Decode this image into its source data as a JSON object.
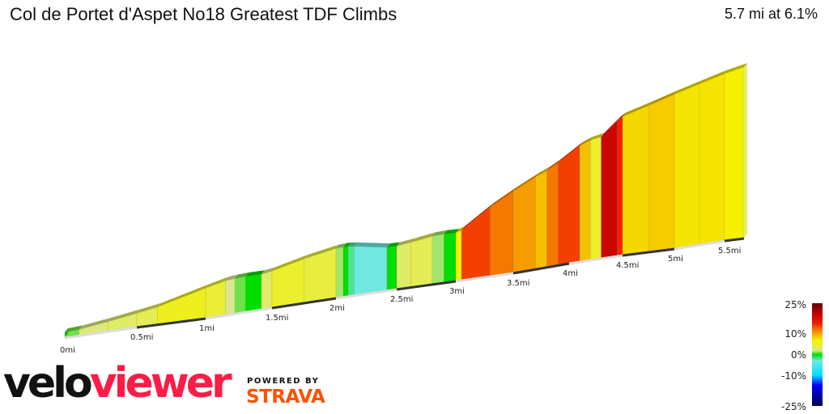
{
  "header": {
    "title": "Col de Portet d'Aspet No18 Greatest TDF Climbs",
    "summary": "5.7 mi at 6.1%"
  },
  "branding": {
    "logo_part1": "velo",
    "logo_part2": "viewer",
    "logo_color": "#fc1c47",
    "powered_by": "POWERED BY",
    "strava": "STRAVA",
    "strava_color": "#fc5200"
  },
  "chart_data": {
    "type": "area",
    "title": "",
    "distance_unit": "mi",
    "total_distance": 5.7,
    "average_grade": 6.1,
    "x_ticks": [
      "0mi",
      "0.5mi",
      "1mi",
      "1.5mi",
      "2mi",
      "2.5mi",
      "3mi",
      "3.5mi",
      "4mi",
      "4.5mi",
      "5mi",
      "5.5mi"
    ],
    "segments": [
      {
        "start": 0.0,
        "end": 0.1,
        "grade": 1
      },
      {
        "start": 0.1,
        "end": 0.3,
        "grade": 2.5
      },
      {
        "start": 0.3,
        "end": 0.5,
        "grade": 3
      },
      {
        "start": 0.5,
        "end": 0.65,
        "grade": 3.5
      },
      {
        "start": 0.65,
        "end": 1.0,
        "grade": 5.5
      },
      {
        "start": 1.0,
        "end": 1.15,
        "grade": 4.5
      },
      {
        "start": 1.15,
        "end": 1.22,
        "grade": 2
      },
      {
        "start": 1.22,
        "end": 1.3,
        "grade": 1
      },
      {
        "start": 1.3,
        "end": 1.42,
        "grade": 0
      },
      {
        "start": 1.42,
        "end": 1.5,
        "grade": 3
      },
      {
        "start": 1.5,
        "end": 1.75,
        "grade": 5
      },
      {
        "start": 1.75,
        "end": 2.0,
        "grade": 4
      },
      {
        "start": 2.0,
        "end": 2.06,
        "grade": 1.5
      },
      {
        "start": 2.06,
        "end": 2.1,
        "grade": 0
      },
      {
        "start": 2.1,
        "end": 2.15,
        "grade": -2
      },
      {
        "start": 2.15,
        "end": 2.42,
        "grade": -3
      },
      {
        "start": 2.42,
        "end": 2.5,
        "grade": 0
      },
      {
        "start": 2.5,
        "end": 2.62,
        "grade": 3
      },
      {
        "start": 2.62,
        "end": 2.8,
        "grade": 3.5
      },
      {
        "start": 2.8,
        "end": 2.9,
        "grade": 1.5
      },
      {
        "start": 2.9,
        "end": 3.0,
        "grade": 0
      },
      {
        "start": 3.0,
        "end": 3.05,
        "grade": 7
      },
      {
        "start": 3.05,
        "end": 3.3,
        "grade": 14
      },
      {
        "start": 3.3,
        "end": 3.5,
        "grade": 12
      },
      {
        "start": 3.5,
        "end": 3.7,
        "grade": 10.5
      },
      {
        "start": 3.7,
        "end": 3.8,
        "grade": 9
      },
      {
        "start": 3.8,
        "end": 3.9,
        "grade": 12
      },
      {
        "start": 3.9,
        "end": 4.1,
        "grade": 14
      },
      {
        "start": 4.1,
        "end": 4.2,
        "grade": 9
      },
      {
        "start": 4.2,
        "end": 4.3,
        "grade": 5
      },
      {
        "start": 4.3,
        "end": 4.45,
        "grade": 19
      },
      {
        "start": 4.45,
        "end": 4.5,
        "grade": 15
      },
      {
        "start": 4.5,
        "end": 4.75,
        "grade": 8
      },
      {
        "start": 4.75,
        "end": 5.0,
        "grade": 8.5
      },
      {
        "start": 5.0,
        "end": 5.25,
        "grade": 7.5
      },
      {
        "start": 5.25,
        "end": 5.5,
        "grade": 7.5
      },
      {
        "start": 5.5,
        "end": 5.7,
        "grade": 7
      }
    ],
    "legend": {
      "labels": [
        "25%",
        "10%",
        "0%",
        "-10%",
        "-25%"
      ],
      "values": [
        25,
        10,
        0,
        -10,
        -25
      ],
      "color_stops": [
        {
          "grade": -25,
          "color": "#000050"
        },
        {
          "grade": -15,
          "color": "#0000ff"
        },
        {
          "grade": -10,
          "color": "#00e0ff"
        },
        {
          "grade": -3,
          "color": "#70e8e0"
        },
        {
          "grade": 0,
          "color": "#00dd00"
        },
        {
          "grade": 2,
          "color": "#d8e890"
        },
        {
          "grade": 4,
          "color": "#e8ee40"
        },
        {
          "grade": 7,
          "color": "#f5f000"
        },
        {
          "grade": 9,
          "color": "#f5c000"
        },
        {
          "grade": 11,
          "color": "#f59000"
        },
        {
          "grade": 13,
          "color": "#f56000"
        },
        {
          "grade": 15,
          "color": "#f02000"
        },
        {
          "grade": 20,
          "color": "#c00000"
        },
        {
          "grade": 25,
          "color": "#600000"
        }
      ]
    }
  }
}
